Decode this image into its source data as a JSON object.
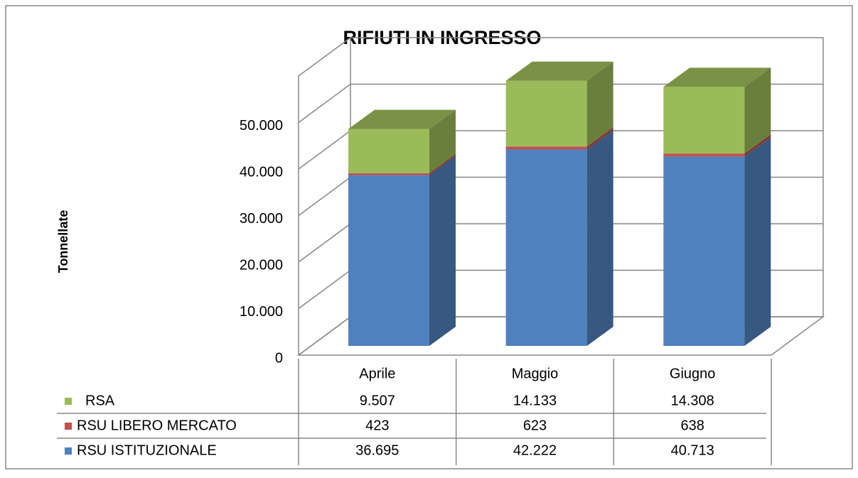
{
  "chart_data": {
    "type": "bar3d_stacked",
    "title": "RIFIUTI IN INGRESSO",
    "y_label": "Tonnellate",
    "categories": [
      "Aprile",
      "Maggio",
      "Giugno"
    ],
    "series": [
      {
        "name": "RSA",
        "color": "#9bbb59",
        "values": [
          9507,
          14133,
          14308
        ],
        "value_labels": [
          "9.507",
          "14.133",
          "14.308"
        ]
      },
      {
        "name": "RSU LIBERO MERCATO",
        "color": "#c0504d",
        "values": [
          423,
          623,
          638
        ],
        "value_labels": [
          "423",
          "623",
          "638"
        ]
      },
      {
        "name": "RSU ISTITUZIONALE",
        "color": "#4f81bd",
        "values": [
          36695,
          42222,
          40713
        ],
        "value_labels": [
          "36.695",
          "42.222",
          "40.713"
        ]
      }
    ],
    "ylim": [
      0,
      60000
    ],
    "yticks": [
      0,
      {
        "value": 10000,
        "label": "10.000"
      },
      {
        "value": 20000,
        "label": "20.000"
      },
      {
        "value": 30000,
        "label": "30.000"
      },
      {
        "value": 40000,
        "label": "40.000"
      },
      {
        "value": 50000,
        "label": "50.000"
      }
    ],
    "grid": true
  }
}
